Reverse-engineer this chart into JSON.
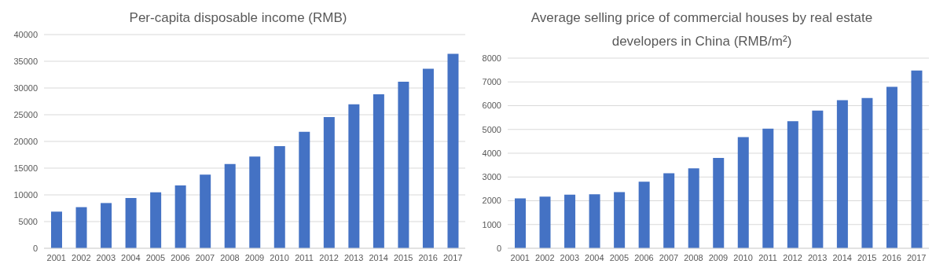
{
  "chart_data": [
    {
      "type": "bar",
      "title": "Per-capita disposable income (RMB)",
      "categories": [
        "2001",
        "2002",
        "2003",
        "2004",
        "2005",
        "2006",
        "2007",
        "2008",
        "2009",
        "2010",
        "2011",
        "2012",
        "2013",
        "2014",
        "2015",
        "2016",
        "2017"
      ],
      "values": [
        6860,
        7700,
        8470,
        9420,
        10490,
        11760,
        13790,
        15780,
        17170,
        19110,
        21810,
        24560,
        26960,
        28840,
        31190,
        33620,
        36400
      ],
      "color": "#4472c4",
      "ylim": [
        0,
        40000
      ],
      "yticks": [
        0,
        5000,
        10000,
        15000,
        20000,
        25000,
        30000,
        35000,
        40000
      ],
      "grid": "y"
    },
    {
      "type": "bar",
      "title": "Average selling price of commercial houses by real estate developers in China (RMB/m²)",
      "categories": [
        "2001",
        "2002",
        "2003",
        "2004",
        "2005",
        "2006",
        "2007",
        "2008",
        "2009",
        "2010",
        "2011",
        "2012",
        "2013",
        "2014",
        "2015",
        "2016",
        "2017"
      ],
      "values": [
        2100,
        2170,
        2260,
        2270,
        2360,
        2800,
        3160,
        3360,
        3800,
        4680,
        5030,
        5350,
        5790,
        6230,
        6320,
        6790,
        7480
      ],
      "color": "#4472c4",
      "ylim": [
        0,
        8000
      ],
      "yticks": [
        0,
        1000,
        2000,
        3000,
        4000,
        5000,
        6000,
        7000,
        8000
      ],
      "grid": "y"
    }
  ]
}
